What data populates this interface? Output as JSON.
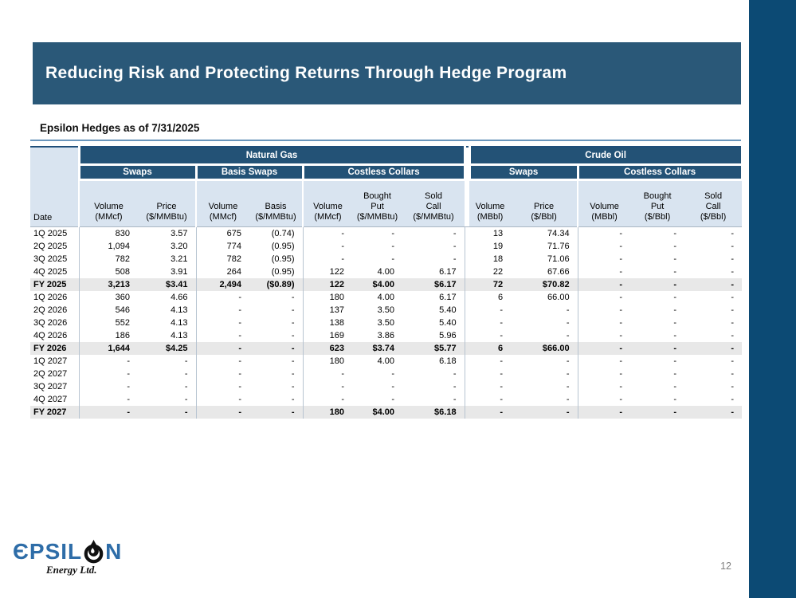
{
  "title_bar": {
    "title": "Reducing Risk and Protecting Returns Through Hedge Program"
  },
  "subtitle": "Epsilon Hedges as of 7/31/2025",
  "page_number": "12",
  "logo": {
    "wordmark_left": "ЄPSIL",
    "wordmark_right": "N",
    "tagline": "Energy Ltd.",
    "icon": "oil-drop-icon"
  },
  "colors": {
    "title_bar": "#2A5878",
    "side_accent_bar": "#0C4A74",
    "table_header_dark": "#235276",
    "table_header_light": "#D9E4F0",
    "fy_row_gray": "#E8E8E8",
    "rule_blue": "#6A96BC",
    "logo_blue": "#2E6DA8",
    "page_number_gray": "#808080"
  },
  "table": {
    "date_header": "Date",
    "groups": [
      {
        "label": "Natural Gas"
      },
      {
        "label": "Crude Oil"
      }
    ],
    "subgroups": {
      "ng": [
        "Swaps",
        "Basis Swaps",
        "Costless Collars"
      ],
      "co": [
        "Swaps",
        "Costless Collars"
      ]
    },
    "columns": [
      {
        "text": "Volume\n(MMcf)"
      },
      {
        "text": "Price\n($/MMBtu)"
      },
      {
        "text": "Volume\n(MMcf)"
      },
      {
        "text": "Basis\n($/MMBtu)"
      },
      {
        "text": "Volume\n(MMcf)"
      },
      {
        "text": "Bought\nPut\n($/MMBtu)"
      },
      {
        "text": "Sold\nCall\n($/MMBtu)"
      },
      {
        "text": "Volume\n(MBbl)"
      },
      {
        "text": "Price\n($/Bbl)"
      },
      {
        "text": "Volume\n(MBbl)"
      },
      {
        "text": "Bought\nPut\n($/Bbl)"
      },
      {
        "text": "Sold\nCall\n($/Bbl)"
      }
    ],
    "rows": [
      {
        "label": "1Q 2025",
        "fy": false,
        "cells": [
          "830",
          "3.57",
          "675",
          "(0.74)",
          "-",
          "-",
          "-",
          "13",
          "74.34",
          "-",
          "-",
          "-"
        ]
      },
      {
        "label": "2Q 2025",
        "fy": false,
        "cells": [
          "1,094",
          "3.20",
          "774",
          "(0.95)",
          "-",
          "-",
          "-",
          "19",
          "71.76",
          "-",
          "-",
          "-"
        ]
      },
      {
        "label": "3Q 2025",
        "fy": false,
        "cells": [
          "782",
          "3.21",
          "782",
          "(0.95)",
          "-",
          "-",
          "-",
          "18",
          "71.06",
          "-",
          "-",
          "-"
        ]
      },
      {
        "label": "4Q 2025",
        "fy": false,
        "cells": [
          "508",
          "3.91",
          "264",
          "(0.95)",
          "122",
          "4.00",
          "6.17",
          "22",
          "67.66",
          "-",
          "-",
          "-"
        ]
      },
      {
        "label": "FY 2025",
        "fy": true,
        "cells": [
          "3,213",
          "$3.41",
          "2,494",
          "($0.89)",
          "122",
          "$4.00",
          "$6.17",
          "72",
          "$70.82",
          "-",
          "-",
          "-"
        ]
      },
      {
        "label": "1Q 2026",
        "fy": false,
        "cells": [
          "360",
          "4.66",
          "-",
          "-",
          "180",
          "4.00",
          "6.17",
          "6",
          "66.00",
          "-",
          "-",
          "-"
        ]
      },
      {
        "label": "2Q 2026",
        "fy": false,
        "cells": [
          "546",
          "4.13",
          "-",
          "-",
          "137",
          "3.50",
          "5.40",
          "-",
          "-",
          "-",
          "-",
          "-"
        ]
      },
      {
        "label": "3Q 2026",
        "fy": false,
        "cells": [
          "552",
          "4.13",
          "-",
          "-",
          "138",
          "3.50",
          "5.40",
          "-",
          "-",
          "-",
          "-",
          "-"
        ]
      },
      {
        "label": "4Q 2026",
        "fy": false,
        "cells": [
          "186",
          "4.13",
          "-",
          "-",
          "169",
          "3.86",
          "5.96",
          "-",
          "-",
          "-",
          "-",
          "-"
        ]
      },
      {
        "label": "FY 2026",
        "fy": true,
        "cells": [
          "1,644",
          "$4.25",
          "-",
          "-",
          "623",
          "$3.74",
          "$5.77",
          "6",
          "$66.00",
          "-",
          "-",
          "-"
        ]
      },
      {
        "label": "1Q 2027",
        "fy": false,
        "cells": [
          "-",
          "-",
          "-",
          "-",
          "180",
          "4.00",
          "6.18",
          "-",
          "-",
          "-",
          "-",
          "-"
        ]
      },
      {
        "label": "2Q 2027",
        "fy": false,
        "cells": [
          "-",
          "-",
          "-",
          "-",
          "-",
          "-",
          "-",
          "-",
          "-",
          "-",
          "-",
          "-"
        ]
      },
      {
        "label": "3Q 2027",
        "fy": false,
        "cells": [
          "-",
          "-",
          "-",
          "-",
          "-",
          "-",
          "-",
          "-",
          "-",
          "-",
          "-",
          "-"
        ]
      },
      {
        "label": "4Q 2027",
        "fy": false,
        "cells": [
          "-",
          "-",
          "-",
          "-",
          "-",
          "-",
          "-",
          "-",
          "-",
          "-",
          "-",
          "-"
        ]
      },
      {
        "label": "FY 2027",
        "fy": true,
        "cells": [
          "-",
          "-",
          "-",
          "-",
          "180",
          "$4.00",
          "$6.18",
          "-",
          "-",
          "-",
          "-",
          "-"
        ]
      }
    ]
  }
}
